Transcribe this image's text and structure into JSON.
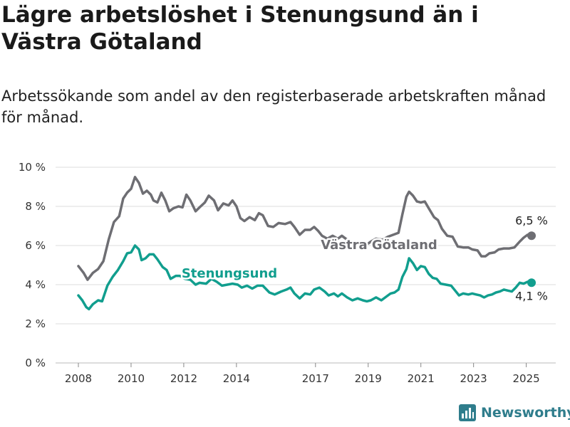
{
  "title": "Lägre arbetslöshet i Stenungsund än i Västra Götaland",
  "subtitle": "Arbetssökande som andel av den registerbaserade arbetskraften månad för månad.",
  "brand": "Newsworthy",
  "colors": {
    "vg": "#6e6e73",
    "sten": "#119e8e",
    "grid": "#dddddd",
    "axis": "#333333",
    "brand": "#2f7d8c"
  },
  "chart_data": {
    "type": "line",
    "x_unit": "year",
    "ylim": [
      0,
      10
    ],
    "yticks": [
      0,
      2,
      4,
      6,
      8,
      10
    ],
    "ytick_labels": [
      "0 %",
      "2 %",
      "4 %",
      "6 %",
      "8 %",
      "10 %"
    ],
    "xticks": [
      2008,
      2010,
      2012,
      2014,
      2017,
      2019,
      2021,
      2023,
      2025
    ],
    "xtick_labels": [
      "2008",
      "2010",
      "2012",
      "2014",
      "2017",
      "2019",
      "2021",
      "2023",
      "2025"
    ],
    "grid": true,
    "series": [
      {
        "name": "Västra Götaland",
        "color": "#6e6e73",
        "end_label": "6,5 %",
        "points": [
          [
            2008.0,
            4.95
          ],
          [
            2008.2,
            4.6
          ],
          [
            2008.35,
            4.25
          ],
          [
            2008.55,
            4.6
          ],
          [
            2008.75,
            4.8
          ],
          [
            2008.95,
            5.2
          ],
          [
            2009.15,
            6.3
          ],
          [
            2009.35,
            7.2
          ],
          [
            2009.55,
            7.5
          ],
          [
            2009.7,
            8.4
          ],
          [
            2009.85,
            8.7
          ],
          [
            2010.0,
            8.9
          ],
          [
            2010.15,
            9.5
          ],
          [
            2010.3,
            9.2
          ],
          [
            2010.45,
            8.65
          ],
          [
            2010.6,
            8.8
          ],
          [
            2010.75,
            8.6
          ],
          [
            2010.85,
            8.3
          ],
          [
            2011.0,
            8.2
          ],
          [
            2011.15,
            8.7
          ],
          [
            2011.3,
            8.3
          ],
          [
            2011.45,
            7.75
          ],
          [
            2011.6,
            7.9
          ],
          [
            2011.8,
            8.0
          ],
          [
            2011.95,
            7.95
          ],
          [
            2012.1,
            8.6
          ],
          [
            2012.25,
            8.3
          ],
          [
            2012.45,
            7.75
          ],
          [
            2012.6,
            7.95
          ],
          [
            2012.8,
            8.2
          ],
          [
            2012.95,
            8.55
          ],
          [
            2013.15,
            8.3
          ],
          [
            2013.3,
            7.8
          ],
          [
            2013.5,
            8.15
          ],
          [
            2013.7,
            8.05
          ],
          [
            2013.85,
            8.3
          ],
          [
            2014.0,
            8.0
          ],
          [
            2014.15,
            7.4
          ],
          [
            2014.3,
            7.25
          ],
          [
            2014.5,
            7.45
          ],
          [
            2014.7,
            7.3
          ],
          [
            2014.85,
            7.65
          ],
          [
            2015.0,
            7.55
          ],
          [
            2015.2,
            7.0
          ],
          [
            2015.4,
            6.95
          ],
          [
            2015.6,
            7.15
          ],
          [
            2015.85,
            7.1
          ],
          [
            2016.05,
            7.2
          ],
          [
            2016.2,
            6.95
          ],
          [
            2016.4,
            6.55
          ],
          [
            2016.6,
            6.8
          ],
          [
            2016.8,
            6.8
          ],
          [
            2016.95,
            6.95
          ],
          [
            2017.1,
            6.75
          ],
          [
            2017.25,
            6.5
          ],
          [
            2017.45,
            6.35
          ],
          [
            2017.65,
            6.5
          ],
          [
            2017.85,
            6.35
          ],
          [
            2018.0,
            6.5
          ],
          [
            2018.2,
            6.3
          ],
          [
            2018.45,
            6.1
          ],
          [
            2018.7,
            6.15
          ],
          [
            2018.9,
            6.0
          ],
          [
            2019.1,
            6.2
          ],
          [
            2019.3,
            6.35
          ],
          [
            2019.55,
            6.3
          ],
          [
            2019.75,
            6.45
          ],
          [
            2019.95,
            6.55
          ],
          [
            2020.15,
            6.65
          ],
          [
            2020.3,
            7.6
          ],
          [
            2020.45,
            8.5
          ],
          [
            2020.55,
            8.75
          ],
          [
            2020.7,
            8.55
          ],
          [
            2020.85,
            8.25
          ],
          [
            2021.0,
            8.2
          ],
          [
            2021.15,
            8.25
          ],
          [
            2021.3,
            7.9
          ],
          [
            2021.5,
            7.45
          ],
          [
            2021.65,
            7.3
          ],
          [
            2021.8,
            6.85
          ],
          [
            2022.0,
            6.5
          ],
          [
            2022.2,
            6.45
          ],
          [
            2022.4,
            5.95
          ],
          [
            2022.6,
            5.9
          ],
          [
            2022.8,
            5.9
          ],
          [
            2022.95,
            5.8
          ],
          [
            2023.15,
            5.75
          ],
          [
            2023.3,
            5.45
          ],
          [
            2023.45,
            5.45
          ],
          [
            2023.6,
            5.6
          ],
          [
            2023.8,
            5.65
          ],
          [
            2023.95,
            5.8
          ],
          [
            2024.15,
            5.85
          ],
          [
            2024.35,
            5.85
          ],
          [
            2024.55,
            5.9
          ],
          [
            2024.75,
            6.2
          ],
          [
            2024.9,
            6.4
          ],
          [
            2025.05,
            6.55
          ],
          [
            2025.2,
            6.5
          ]
        ]
      },
      {
        "name": "Stenungsund",
        "color": "#119e8e",
        "end_label": "4,1 %",
        "points": [
          [
            2008.0,
            3.45
          ],
          [
            2008.15,
            3.2
          ],
          [
            2008.3,
            2.85
          ],
          [
            2008.4,
            2.75
          ],
          [
            2008.55,
            3.0
          ],
          [
            2008.75,
            3.2
          ],
          [
            2008.9,
            3.15
          ],
          [
            2009.1,
            3.95
          ],
          [
            2009.3,
            4.4
          ],
          [
            2009.5,
            4.75
          ],
          [
            2009.7,
            5.2
          ],
          [
            2009.85,
            5.6
          ],
          [
            2010.0,
            5.65
          ],
          [
            2010.15,
            6.0
          ],
          [
            2010.3,
            5.8
          ],
          [
            2010.4,
            5.25
          ],
          [
            2010.55,
            5.35
          ],
          [
            2010.7,
            5.55
          ],
          [
            2010.85,
            5.55
          ],
          [
            2011.0,
            5.3
          ],
          [
            2011.2,
            4.9
          ],
          [
            2011.35,
            4.75
          ],
          [
            2011.5,
            4.3
          ],
          [
            2011.7,
            4.45
          ],
          [
            2011.85,
            4.45
          ],
          [
            2012.05,
            4.3
          ],
          [
            2012.25,
            4.25
          ],
          [
            2012.45,
            4.0
          ],
          [
            2012.6,
            4.1
          ],
          [
            2012.85,
            4.05
          ],
          [
            2013.05,
            4.3
          ],
          [
            2013.25,
            4.15
          ],
          [
            2013.45,
            3.95
          ],
          [
            2013.65,
            4.0
          ],
          [
            2013.85,
            4.05
          ],
          [
            2014.05,
            4.0
          ],
          [
            2014.2,
            3.85
          ],
          [
            2014.4,
            3.95
          ],
          [
            2014.6,
            3.8
          ],
          [
            2014.8,
            3.95
          ],
          [
            2015.0,
            3.95
          ],
          [
            2015.25,
            3.6
          ],
          [
            2015.45,
            3.5
          ],
          [
            2015.7,
            3.65
          ],
          [
            2015.9,
            3.75
          ],
          [
            2016.05,
            3.85
          ],
          [
            2016.2,
            3.55
          ],
          [
            2016.4,
            3.3
          ],
          [
            2016.6,
            3.55
          ],
          [
            2016.8,
            3.5
          ],
          [
            2016.95,
            3.75
          ],
          [
            2017.15,
            3.85
          ],
          [
            2017.35,
            3.65
          ],
          [
            2017.5,
            3.45
          ],
          [
            2017.7,
            3.55
          ],
          [
            2017.85,
            3.4
          ],
          [
            2018.0,
            3.55
          ],
          [
            2018.2,
            3.35
          ],
          [
            2018.4,
            3.2
          ],
          [
            2018.6,
            3.3
          ],
          [
            2018.8,
            3.2
          ],
          [
            2018.95,
            3.15
          ],
          [
            2019.1,
            3.2
          ],
          [
            2019.3,
            3.35
          ],
          [
            2019.5,
            3.2
          ],
          [
            2019.7,
            3.4
          ],
          [
            2019.85,
            3.55
          ],
          [
            2020.0,
            3.6
          ],
          [
            2020.15,
            3.75
          ],
          [
            2020.3,
            4.4
          ],
          [
            2020.45,
            4.8
          ],
          [
            2020.55,
            5.35
          ],
          [
            2020.7,
            5.1
          ],
          [
            2020.85,
            4.75
          ],
          [
            2021.0,
            4.95
          ],
          [
            2021.15,
            4.9
          ],
          [
            2021.3,
            4.55
          ],
          [
            2021.45,
            4.35
          ],
          [
            2021.6,
            4.3
          ],
          [
            2021.75,
            4.05
          ],
          [
            2021.95,
            4.0
          ],
          [
            2022.15,
            3.95
          ],
          [
            2022.3,
            3.7
          ],
          [
            2022.45,
            3.45
          ],
          [
            2022.6,
            3.55
          ],
          [
            2022.8,
            3.5
          ],
          [
            2022.95,
            3.55
          ],
          [
            2023.1,
            3.5
          ],
          [
            2023.25,
            3.45
          ],
          [
            2023.4,
            3.35
          ],
          [
            2023.55,
            3.45
          ],
          [
            2023.7,
            3.5
          ],
          [
            2023.85,
            3.6
          ],
          [
            2024.0,
            3.65
          ],
          [
            2024.15,
            3.75
          ],
          [
            2024.3,
            3.7
          ],
          [
            2024.45,
            3.65
          ],
          [
            2024.6,
            3.85
          ],
          [
            2024.75,
            4.1
          ],
          [
            2024.9,
            4.05
          ],
          [
            2025.05,
            4.15
          ],
          [
            2025.2,
            4.1
          ]
        ]
      }
    ]
  }
}
